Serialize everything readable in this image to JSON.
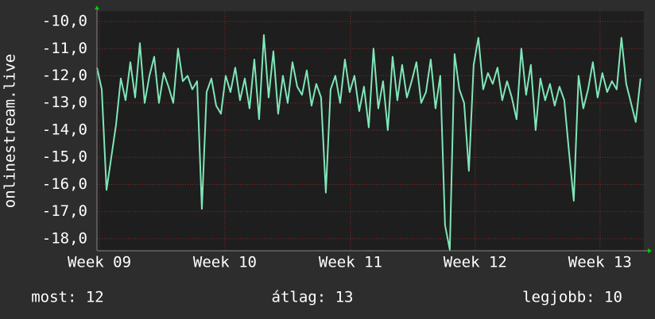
{
  "chart_data": {
    "type": "line",
    "y_label": "onlinestream.live",
    "x": [
      0,
      1,
      2,
      3,
      4,
      5,
      6,
      7,
      8,
      9,
      10,
      11,
      12,
      13,
      14,
      15,
      16,
      17,
      18,
      19,
      20,
      21,
      22,
      23,
      24,
      25,
      26,
      27,
      28,
      29,
      30,
      31,
      32,
      33,
      34,
      35,
      36,
      37,
      38,
      39,
      40,
      41,
      42,
      43,
      44,
      45,
      46,
      47,
      48,
      49,
      50,
      51,
      52,
      53,
      54,
      55,
      56,
      57,
      58,
      59,
      60,
      61,
      62,
      63,
      64,
      65,
      66,
      67,
      68,
      69,
      70,
      71,
      72,
      73,
      74,
      75,
      76,
      77,
      78,
      79,
      80,
      81,
      82,
      83,
      84,
      85,
      86,
      87,
      88,
      89,
      90,
      91,
      92,
      93,
      94,
      95,
      96,
      97,
      98,
      99,
      100,
      101,
      102,
      103,
      104,
      105,
      106,
      107,
      108,
      109,
      110,
      111,
      112,
      113,
      114
    ],
    "series": [
      {
        "name": "onlinestream.live",
        "color": "#7fe6b8",
        "values": [
          -11.7,
          -12.5,
          -16.2,
          -15.0,
          -13.8,
          -12.1,
          -12.9,
          -11.5,
          -12.8,
          -10.8,
          -13.0,
          -12.0,
          -11.3,
          -13.0,
          -11.9,
          -12.4,
          -13.0,
          -11.0,
          -12.2,
          -12.0,
          -12.5,
          -12.2,
          -16.9,
          -12.6,
          -12.1,
          -13.1,
          -13.4,
          -12.0,
          -12.6,
          -11.7,
          -12.9,
          -12.1,
          -13.2,
          -11.4,
          -13.6,
          -10.5,
          -12.8,
          -11.1,
          -13.4,
          -12.0,
          -13.0,
          -11.5,
          -12.4,
          -12.7,
          -11.8,
          -13.1,
          -12.3,
          -12.8,
          -16.3,
          -12.5,
          -12.0,
          -13.0,
          -11.4,
          -12.6,
          -12.0,
          -13.3,
          -12.4,
          -13.9,
          -11.0,
          -13.2,
          -12.2,
          -14.0,
          -11.3,
          -12.9,
          -11.6,
          -12.8,
          -12.2,
          -11.5,
          -13.0,
          -12.6,
          -11.4,
          -13.2,
          -12.0,
          -17.5,
          -18.4,
          -11.2,
          -12.5,
          -13.0,
          -15.5,
          -11.6,
          -10.6,
          -12.5,
          -11.9,
          -12.3,
          -11.7,
          -12.9,
          -12.2,
          -12.8,
          -13.6,
          -11.0,
          -12.7,
          -11.6,
          -14.0,
          -12.1,
          -12.9,
          -12.3,
          -13.1,
          -12.4,
          -12.9,
          -14.8,
          -16.6,
          -12.0,
          -13.2,
          -12.5,
          -11.5,
          -12.8,
          -11.9,
          -12.6,
          -12.2,
          -12.5,
          -10.6,
          -12.3,
          -13.0,
          -13.7,
          -12.1
        ]
      }
    ],
    "xlim": [
      0,
      114.7
    ],
    "xticks": [
      {
        "value": 0.5,
        "label": "Week 09"
      },
      {
        "value": 26.83,
        "label": "Week 10"
      },
      {
        "value": 53.17,
        "label": "Week 11"
      },
      {
        "value": 79.33,
        "label": "Week 12"
      },
      {
        "value": 105.5,
        "label": "Week 13"
      }
    ],
    "ylim": [
      -18.44,
      -9.62
    ],
    "yticks": [
      {
        "value": -10,
        "label": "-10,0"
      },
      {
        "value": -11,
        "label": "-11,0"
      },
      {
        "value": -12,
        "label": "-12,0"
      },
      {
        "value": -13,
        "label": "-13,0"
      },
      {
        "value": -14,
        "label": "-14,0"
      },
      {
        "value": -15,
        "label": "-15,0"
      },
      {
        "value": -16,
        "label": "-16,0"
      },
      {
        "value": -17,
        "label": "-17,0"
      },
      {
        "value": -18,
        "label": "-18,0"
      }
    ],
    "grid": true,
    "stats": [
      "most: 12",
      "átlag: 13",
      "legjobb: 10"
    ]
  }
}
